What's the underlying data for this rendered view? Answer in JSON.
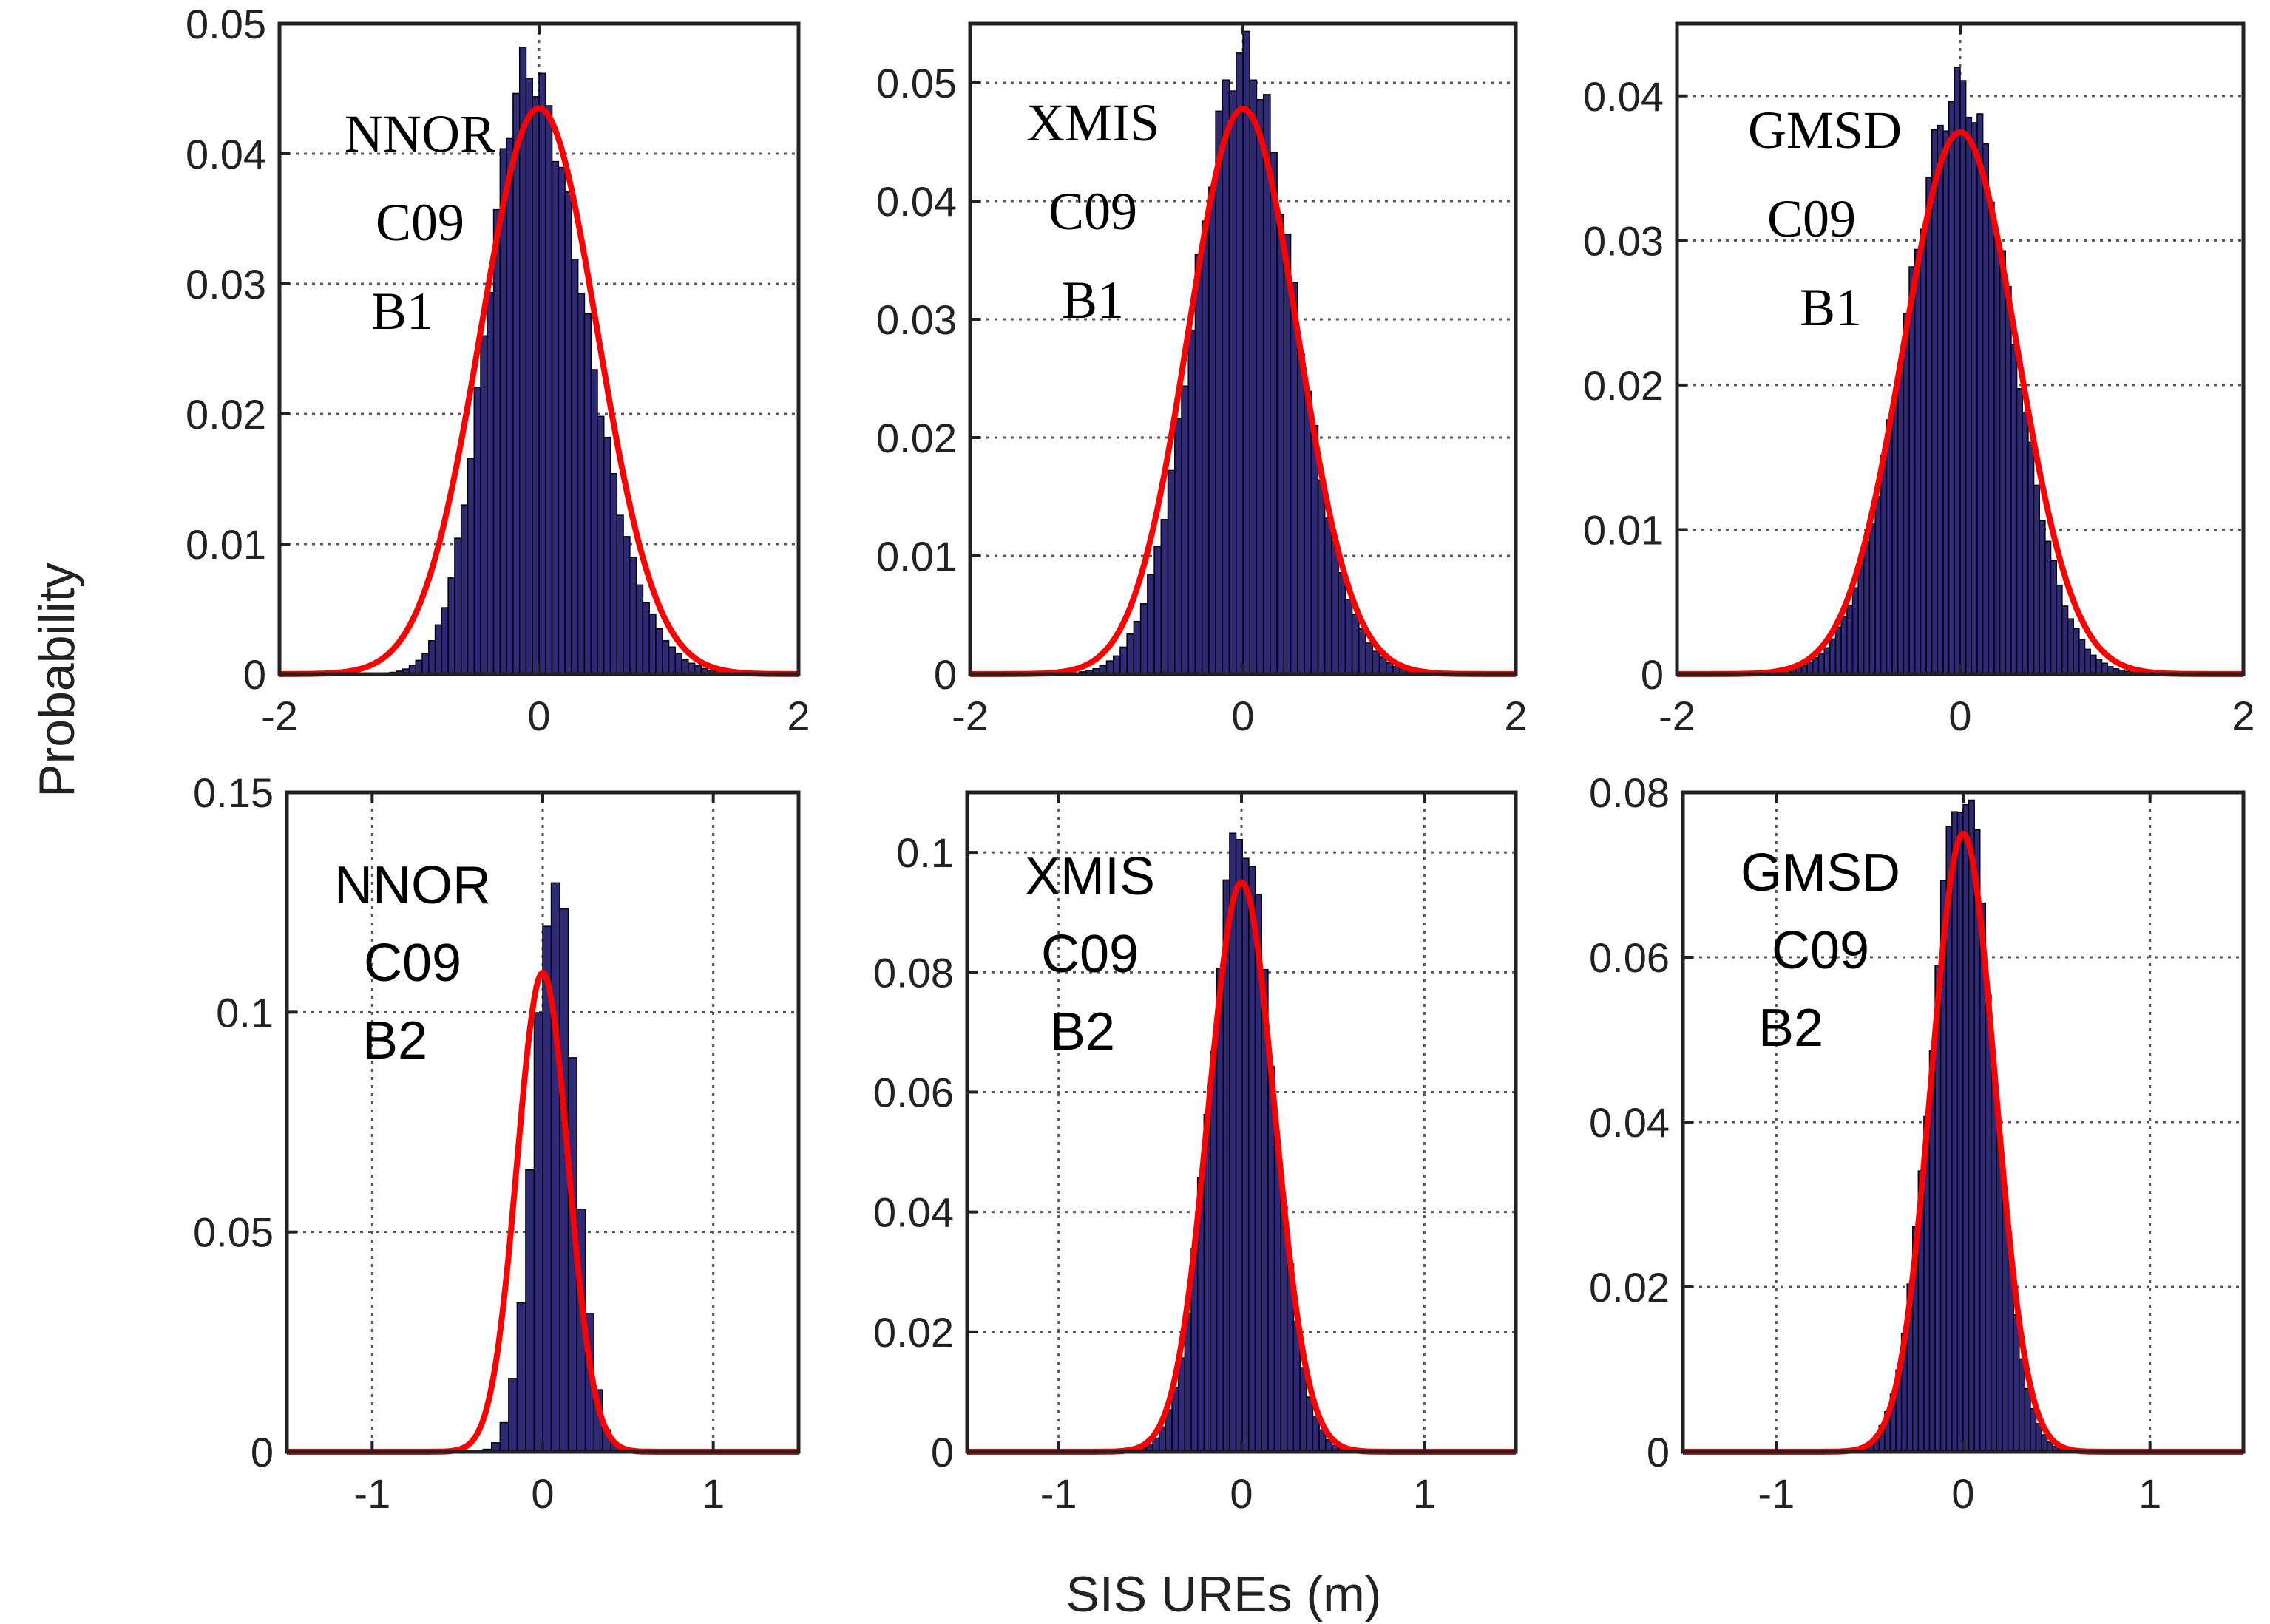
{
  "figure": {
    "ylabel": "Probability",
    "xlabel": "SIS UREs (m)",
    "colors": {
      "histogram": "#2e2a78",
      "fit_curve": "#ff0000",
      "axes": "#222222",
      "grid": "#555555"
    }
  },
  "chart_data": [
    {
      "type": "bar",
      "name": "NNOR-C09-B1",
      "annotation": [
        "NNOR",
        "C09",
        "B1"
      ],
      "annotation_font": "serif",
      "xlim": [
        -2,
        2
      ],
      "ylim": [
        0,
        0.05
      ],
      "xticks": [
        -2,
        0,
        2
      ],
      "xtick_labels": [
        "-2",
        "0",
        "2"
      ],
      "yticks": [
        0,
        0.01,
        0.02,
        0.03,
        0.04,
        0.05
      ],
      "ytick_labels": [
        "0",
        "0.01",
        "0.02",
        "0.03",
        "0.04",
        "0.05"
      ],
      "grid": true,
      "bin_width": 0.05,
      "hist_mode": -0.1,
      "hist_sigma_left": 0.3,
      "hist_sigma_right": 0.45,
      "hist_peak": 0.0465,
      "fit": {
        "distribution": "normal",
        "mean": 0.0,
        "sigma": 0.45,
        "peak": 0.0435
      }
    },
    {
      "type": "bar",
      "name": "XMIS-C09-B1",
      "annotation": [
        "XMIS",
        "C09",
        "B1"
      ],
      "annotation_font": "serif",
      "xlim": [
        -2,
        2
      ],
      "ylim": [
        0,
        0.055
      ],
      "xticks": [
        -2,
        0,
        2
      ],
      "xtick_labels": [
        "-2",
        "0",
        "2"
      ],
      "yticks": [
        0,
        0.01,
        0.02,
        0.03,
        0.04,
        0.05
      ],
      "ytick_labels": [
        "0",
        "0.01",
        "0.02",
        "0.03",
        "0.04",
        "0.05"
      ],
      "grid": true,
      "bin_width": 0.05,
      "hist_mode": 0.0,
      "hist_sigma_left": 0.35,
      "hist_sigma_right": 0.38,
      "hist_peak": 0.0525,
      "fit": {
        "distribution": "normal",
        "mean": 0.0,
        "sigma": 0.4,
        "peak": 0.0478
      }
    },
    {
      "type": "bar",
      "name": "GMSD-C09-B1",
      "annotation": [
        "GMSD",
        "C09",
        "B1"
      ],
      "annotation_font": "serif",
      "xlim": [
        -2,
        2
      ],
      "ylim": [
        0,
        0.045
      ],
      "xticks": [
        -2,
        0,
        2
      ],
      "xtick_labels": [
        "-2",
        "0",
        "2"
      ],
      "yticks": [
        0,
        0.01,
        0.02,
        0.03,
        0.04
      ],
      "ytick_labels": [
        "0",
        "0.01",
        "0.02",
        "0.03",
        "0.04"
      ],
      "grid": true,
      "bin_width": 0.04,
      "hist_mode": 0.0,
      "hist_sigma_left": 0.38,
      "hist_sigma_right": 0.36,
      "hist_peak": 0.0405,
      "fit": {
        "distribution": "normal",
        "mean": 0.0,
        "sigma": 0.4,
        "peak": 0.0375
      }
    },
    {
      "type": "bar",
      "name": "NNOR-C09-B2",
      "annotation": [
        "NNOR",
        "C09",
        "B2"
      ],
      "annotation_font": "sans",
      "xlim": [
        -1.5,
        1.5
      ],
      "ylim": [
        0,
        0.15
      ],
      "xticks": [
        -1,
        0,
        1
      ],
      "xtick_labels": [
        "-1",
        "0",
        "1"
      ],
      "yticks": [
        0,
        0.05,
        0.1,
        0.15
      ],
      "ytick_labels": [
        "0",
        "0.05",
        "0.1",
        "0.15"
      ],
      "grid": true,
      "bin_width": 0.05,
      "hist_mode": 0.07,
      "hist_sigma_left": 0.12,
      "hist_sigma_right": 0.12,
      "hist_peak": 0.132,
      "fit": {
        "distribution": "normal",
        "mean": 0.0,
        "sigma": 0.15,
        "peak": 0.109
      }
    },
    {
      "type": "bar",
      "name": "XMIS-C09-B2",
      "annotation": [
        "XMIS",
        "C09",
        "B2"
      ],
      "annotation_font": "sans",
      "xlim": [
        -1.5,
        1.5
      ],
      "ylim": [
        0,
        0.11
      ],
      "xticks": [
        -1,
        0,
        1
      ],
      "xtick_labels": [
        "-1",
        "0",
        "1"
      ],
      "yticks": [
        0,
        0.02,
        0.04,
        0.06,
        0.08,
        0.1
      ],
      "ytick_labels": [
        "0",
        "0.02",
        "0.04",
        "0.06",
        "0.08",
        "0.1"
      ],
      "grid": true,
      "bin_width": 0.035,
      "hist_mode": 0.0,
      "hist_sigma_left": 0.17,
      "hist_sigma_right": 0.17,
      "hist_peak": 0.104,
      "fit": {
        "distribution": "normal",
        "mean": 0.0,
        "sigma": 0.18,
        "peak": 0.095
      }
    },
    {
      "type": "bar",
      "name": "GMSD-C09-B2",
      "annotation": [
        "GMSD",
        "C09",
        "B2"
      ],
      "annotation_font": "sans",
      "xlim": [
        -1.5,
        1.5
      ],
      "ylim": [
        0,
        0.08
      ],
      "xticks": [
        -1,
        0,
        1
      ],
      "xtick_labels": [
        "-1",
        "0",
        "1"
      ],
      "yticks": [
        0,
        0.02,
        0.04,
        0.06,
        0.08
      ],
      "ytick_labels": [
        "0",
        "0.02",
        "0.04",
        "0.06",
        "0.08"
      ],
      "grid": true,
      "bin_width": 0.03,
      "hist_mode": 0.0,
      "hist_sigma_left": 0.17,
      "hist_sigma_right": 0.16,
      "hist_peak": 0.081,
      "fit": {
        "distribution": "normal",
        "mean": 0.0,
        "sigma": 0.17,
        "peak": 0.075
      }
    }
  ]
}
